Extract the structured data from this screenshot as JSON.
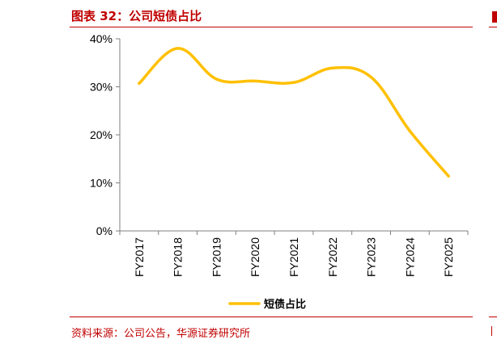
{
  "figure": {
    "title": "图表 32：公司短债占比",
    "source": "资料来源：公司公告，华源证券研究所"
  },
  "chart_data": {
    "type": "line",
    "categories": [
      "FY2017",
      "FY2018",
      "FY2019",
      "FY2020",
      "FY2021",
      "FY2022",
      "FY2023",
      "FY2024",
      "FY2025"
    ],
    "series": [
      {
        "name": "短债占比",
        "values": [
          30.7,
          38.0,
          31.6,
          31.2,
          30.9,
          33.9,
          32.0,
          20.8,
          11.4
        ],
        "color": "#ffc000"
      }
    ],
    "y_ticks": [
      "0%",
      "10%",
      "20%",
      "30%",
      "40%"
    ],
    "ylim": [
      0,
      40
    ],
    "grid": false,
    "legend": "bottom",
    "xlabel": "",
    "ylabel": ""
  },
  "colors": {
    "accent": "#c00000",
    "line": "#ffc000",
    "axis": "#7f7f7f"
  }
}
